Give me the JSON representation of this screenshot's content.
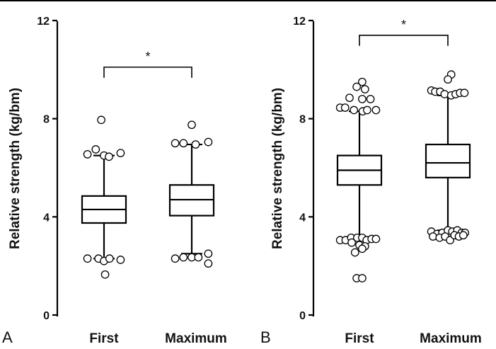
{
  "chart_data": [
    {
      "type": "box",
      "panel_label": "A",
      "ylabel": "Relative strength (kg/bm)",
      "ylim": [
        0,
        12
      ],
      "yticks": [
        0,
        4,
        8,
        12
      ],
      "ytick_labels": [
        "0",
        "4",
        "8",
        "12"
      ],
      "categories": [
        "First",
        "Maximum"
      ],
      "boxes": [
        {
          "category": "First",
          "q1": 3.75,
          "median": 4.3,
          "q3": 4.85,
          "whisker_low": 2.3,
          "whisker_high": 6.5,
          "outliers": [
            [
              -0.05,
              7.95
            ],
            [
              -0.3,
              6.55
            ],
            [
              -0.15,
              6.75
            ],
            [
              0.0,
              6.5
            ],
            [
              0.09,
              6.45
            ],
            [
              0.3,
              6.6
            ],
            [
              -0.3,
              2.3
            ],
            [
              -0.1,
              2.3
            ],
            [
              0.0,
              2.2
            ],
            [
              0.1,
              2.3
            ],
            [
              0.3,
              2.25
            ],
            [
              0.02,
              1.65
            ]
          ]
        },
        {
          "category": "Maximum",
          "q1": 4.05,
          "median": 4.7,
          "q3": 5.3,
          "whisker_low": 2.5,
          "whisker_high": 6.95,
          "outliers": [
            [
              0.0,
              7.75
            ],
            [
              -0.3,
              7.0
            ],
            [
              -0.15,
              7.0
            ],
            [
              0.07,
              6.95
            ],
            [
              0.3,
              7.05
            ],
            [
              -0.3,
              2.3
            ],
            [
              -0.15,
              2.35
            ],
            [
              0.0,
              2.35
            ],
            [
              0.12,
              2.35
            ],
            [
              0.3,
              2.5
            ],
            [
              0.3,
              2.1
            ]
          ]
        }
      ],
      "significance": {
        "between": [
          "First",
          "Maximum"
        ],
        "label": "*",
        "y": 10.1
      }
    },
    {
      "type": "box",
      "panel_label": "B",
      "ylabel": "Relative strength (kg/bm)",
      "ylim": [
        0,
        12
      ],
      "yticks": [
        0,
        4,
        8,
        12
      ],
      "ytick_labels": [
        "0",
        "4",
        "8",
        "12"
      ],
      "categories": [
        "First",
        "Maximum"
      ],
      "boxes": [
        {
          "category": "First",
          "q1": 5.3,
          "median": 5.9,
          "q3": 6.5,
          "whisker_low": 3.15,
          "whisker_high": 8.3,
          "outliers": [
            [
              0.05,
              9.5
            ],
            [
              -0.05,
              9.3
            ],
            [
              0.1,
              9.2
            ],
            [
              -0.18,
              8.85
            ],
            [
              0.05,
              8.8
            ],
            [
              0.2,
              8.8
            ],
            [
              -0.35,
              8.45
            ],
            [
              -0.26,
              8.45
            ],
            [
              -0.1,
              8.35
            ],
            [
              0.06,
              8.3
            ],
            [
              0.14,
              8.35
            ],
            [
              0.3,
              8.35
            ],
            [
              -0.35,
              3.05
            ],
            [
              -0.25,
              3.05
            ],
            [
              -0.15,
              3.15
            ],
            [
              -0.04,
              3.15
            ],
            [
              0.05,
              3.15
            ],
            [
              0.13,
              3.05
            ],
            [
              0.22,
              3.1
            ],
            [
              0.3,
              3.1
            ],
            [
              -0.14,
              2.95
            ],
            [
              0.0,
              2.85
            ],
            [
              0.1,
              2.8
            ],
            [
              -0.08,
              2.55
            ],
            [
              0.05,
              2.7
            ],
            [
              -0.05,
              1.5
            ],
            [
              0.05,
              1.5
            ]
          ]
        },
        {
          "category": "Maximum",
          "q1": 5.6,
          "median": 6.2,
          "q3": 6.95,
          "whisker_low": 3.45,
          "whisker_high": 8.95,
          "outliers": [
            [
              0.06,
              9.8
            ],
            [
              0.0,
              9.6
            ],
            [
              -0.3,
              9.15
            ],
            [
              -0.23,
              9.1
            ],
            [
              -0.14,
              9.1
            ],
            [
              -0.06,
              9.0
            ],
            [
              0.06,
              8.95
            ],
            [
              0.14,
              9.0
            ],
            [
              0.22,
              9.05
            ],
            [
              0.3,
              9.05
            ],
            [
              -0.3,
              3.4
            ],
            [
              -0.2,
              3.3
            ],
            [
              -0.1,
              3.35
            ],
            [
              0.0,
              3.45
            ],
            [
              0.08,
              3.4
            ],
            [
              0.17,
              3.45
            ],
            [
              0.25,
              3.35
            ],
            [
              0.31,
              3.35
            ],
            [
              -0.27,
              3.2
            ],
            [
              -0.15,
              3.15
            ],
            [
              -0.05,
              3.2
            ],
            [
              0.04,
              3.05
            ],
            [
              0.12,
              3.25
            ],
            [
              0.2,
              3.2
            ],
            [
              0.28,
              3.25
            ]
          ]
        }
      ],
      "significance": {
        "between": [
          "First",
          "Maximum"
        ],
        "label": "*",
        "y": 11.4
      }
    }
  ]
}
